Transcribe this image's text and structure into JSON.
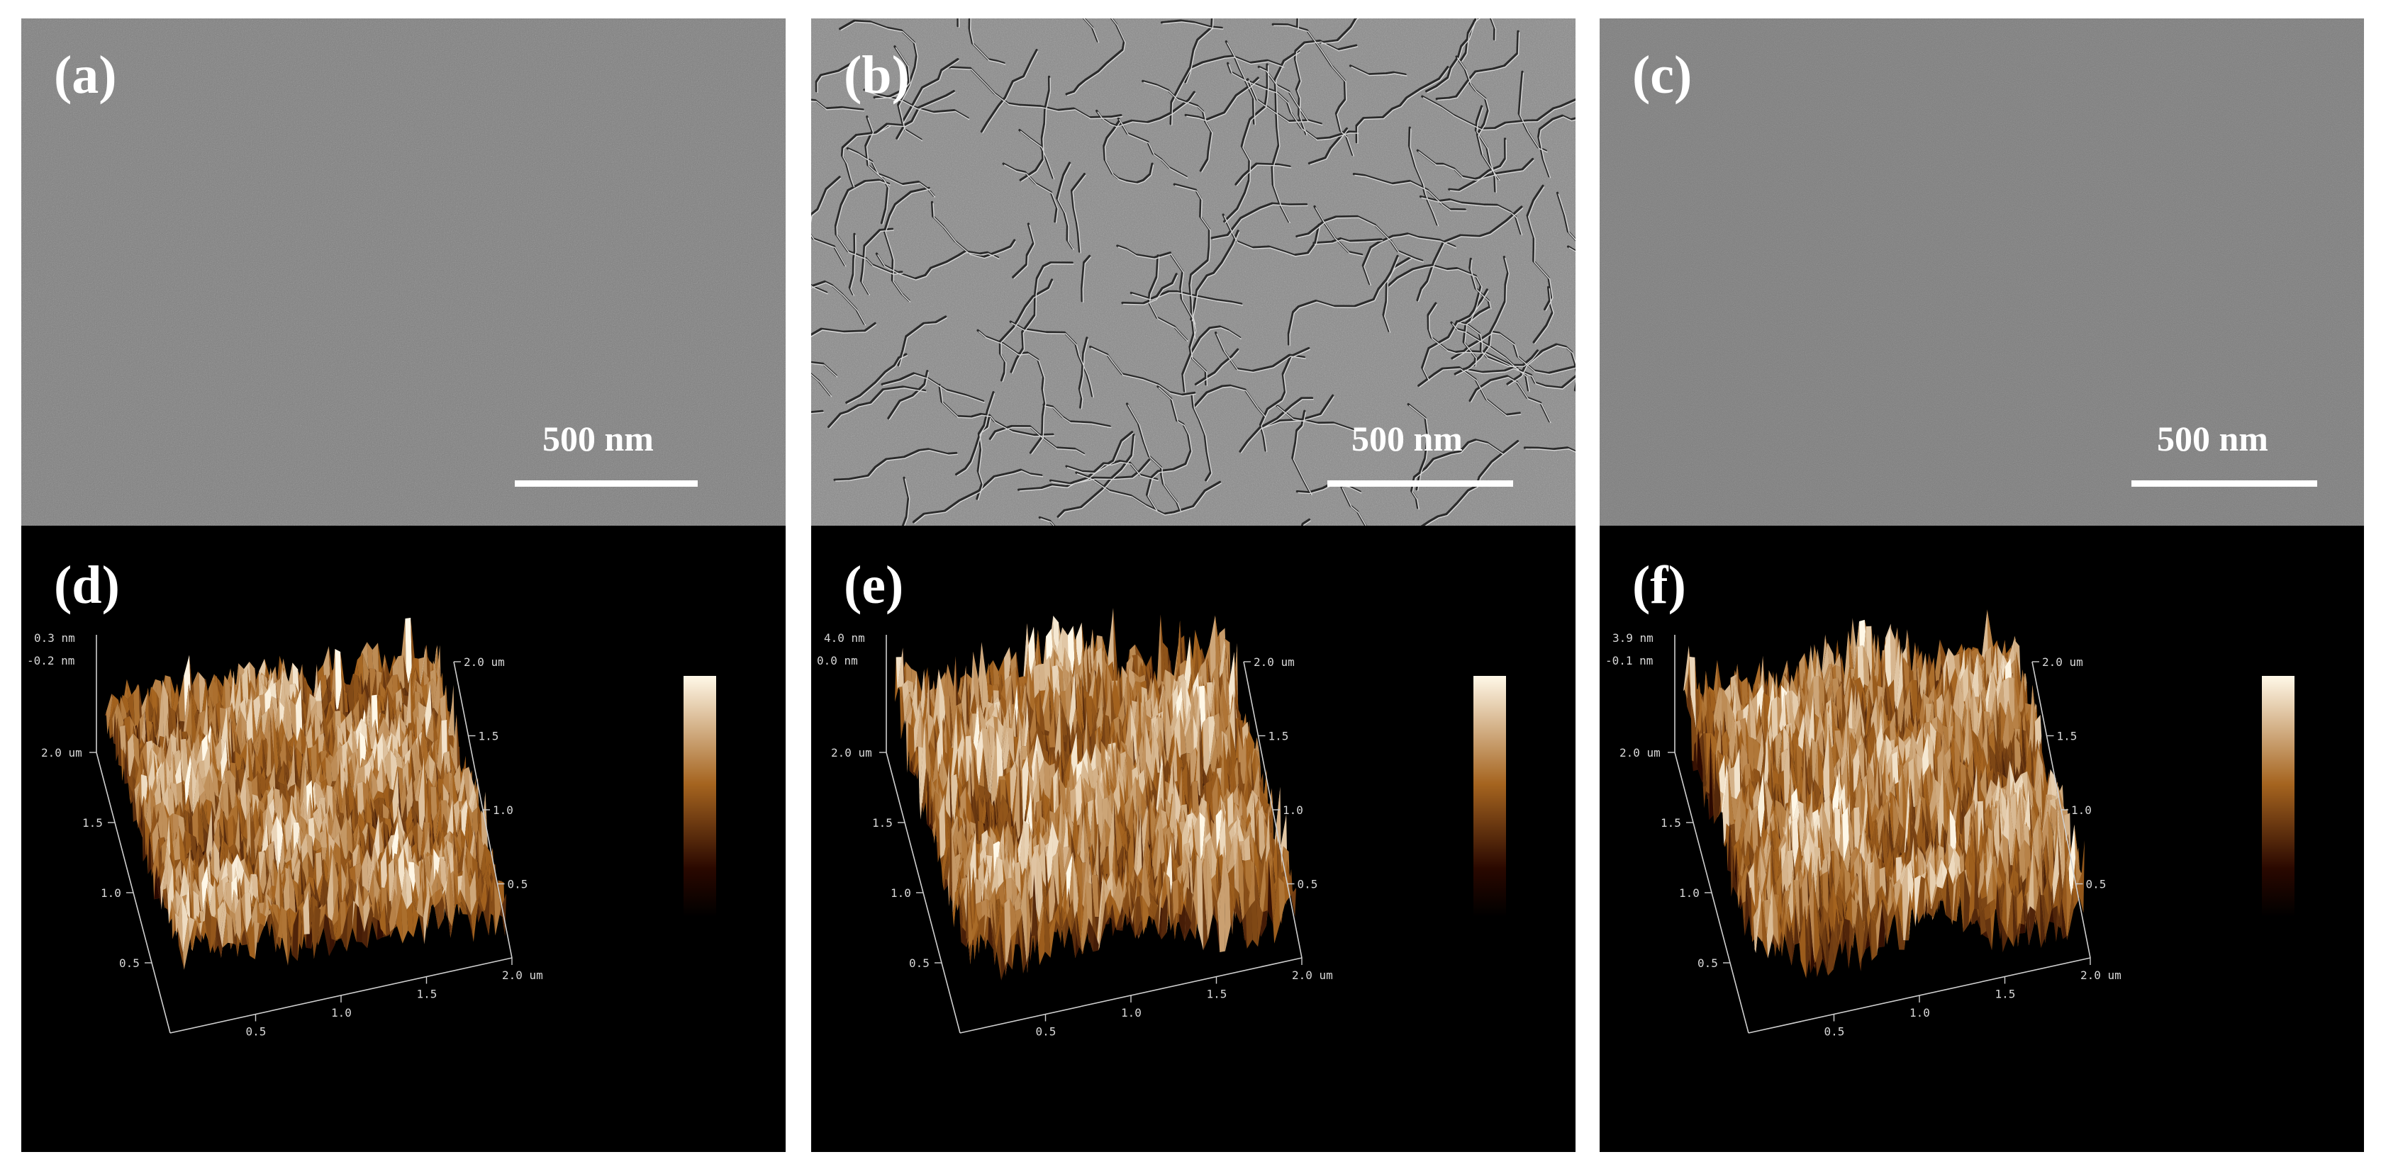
{
  "panels": [
    {
      "label": "(a)",
      "type": "sem",
      "scale_bar": "500 nm",
      "cracked": false
    },
    {
      "label": "(b)",
      "type": "sem",
      "scale_bar": "500 nm",
      "cracked": true
    },
    {
      "label": "(c)",
      "type": "sem",
      "scale_bar": "500 nm",
      "cracked": false
    },
    {
      "label": "(d)",
      "type": "afm",
      "z_top": "0.3 nm",
      "z_second": "-0.2 nm",
      "y_ticks": [
        "2.0 um",
        "1.5",
        "1.0",
        "0.5"
      ],
      "x_ticks": [
        "0.5",
        "1.0",
        "1.5",
        "2.0 um"
      ],
      "r_ticks": [
        "2.0 um",
        "1.5",
        "1.0",
        "0.5"
      ]
    },
    {
      "label": "(e)",
      "type": "afm",
      "z_top": "4.0 nm",
      "z_second": "0.0 nm",
      "y_ticks": [
        "2.0 um",
        "1.5",
        "1.0",
        "0.5"
      ],
      "x_ticks": [
        "0.5",
        "1.0",
        "1.5",
        "2.0 um"
      ],
      "r_ticks": [
        "2.0 um",
        "1.5",
        "1.0",
        "0.5"
      ]
    },
    {
      "label": "(f)",
      "type": "afm",
      "z_top": "3.9 nm",
      "z_second": "-0.1 nm",
      "y_ticks": [
        "2.0 um",
        "1.5",
        "1.0",
        "0.5"
      ],
      "x_ticks": [
        "0.5",
        "1.0",
        "1.5",
        "2.0 um"
      ],
      "r_ticks": [
        "2.0 um",
        "1.5",
        "1.0",
        "0.5"
      ]
    }
  ],
  "colors": {
    "sem_gray": "#7f7f7f",
    "afm_background": "#000000",
    "afm_low": "#2a0800",
    "afm_mid": "#a5641f",
    "afm_high": "#fff8e8"
  }
}
